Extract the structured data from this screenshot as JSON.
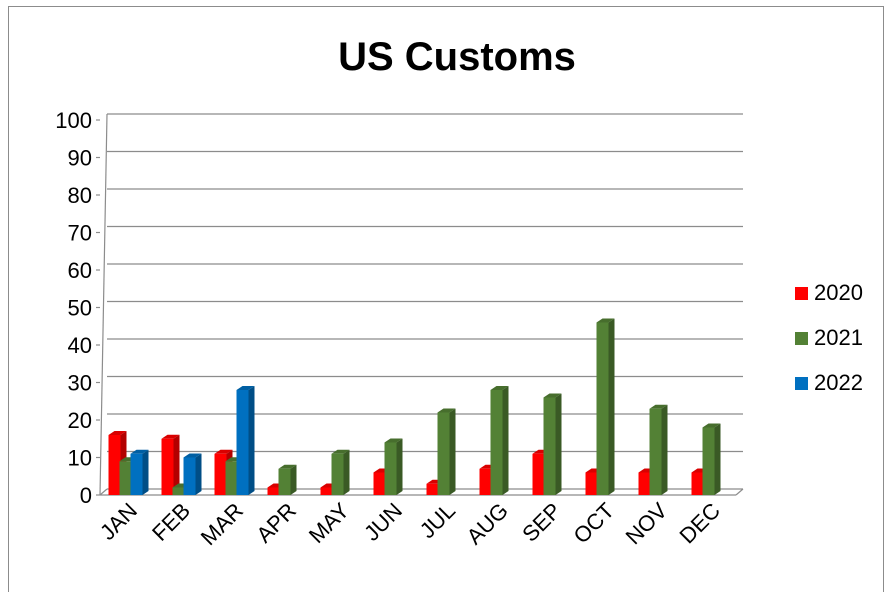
{
  "chart_data": {
    "type": "bar",
    "title": "US Customs",
    "xlabel": "",
    "ylabel": "",
    "ylim": [
      0,
      100
    ],
    "yticks": [
      0,
      10,
      20,
      30,
      40,
      50,
      60,
      70,
      80,
      90,
      100
    ],
    "grid": true,
    "legend_position": "right",
    "categories": [
      "JAN",
      "FEB",
      "MAR",
      "APR",
      "MAY",
      "JUN",
      "JUL",
      "AUG",
      "SEP",
      "OCT",
      "NOV",
      "DEC"
    ],
    "series": [
      {
        "name": "2020",
        "color": "#ff0000",
        "values": [
          16,
          15,
          11,
          2,
          2,
          6,
          3,
          7,
          11,
          6,
          6,
          6
        ]
      },
      {
        "name": "2021",
        "color": "#538135",
        "values": [
          9,
          2,
          9,
          7,
          11,
          14,
          22,
          28,
          26,
          46,
          23,
          18
        ]
      },
      {
        "name": "2022",
        "color": "#0070c0",
        "values": [
          11,
          10,
          28,
          null,
          null,
          null,
          null,
          null,
          null,
          null,
          null,
          null
        ]
      }
    ]
  }
}
